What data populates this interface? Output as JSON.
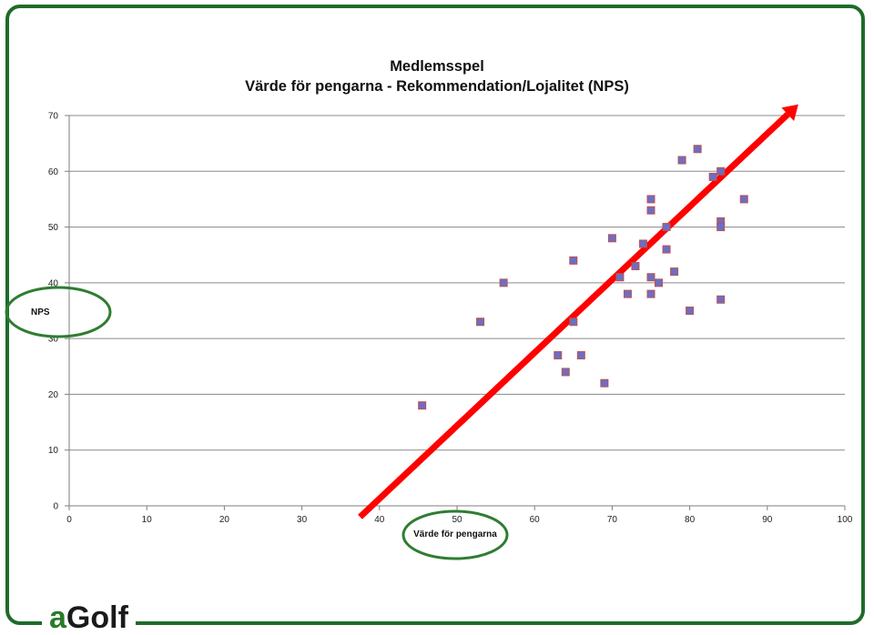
{
  "brand": {
    "logo_accent": "a",
    "logo_rest": "Golf",
    "frame_color": "#1f6b2a"
  },
  "chart_data": {
    "type": "scatter",
    "title": "Medlemsspel",
    "subtitle": "Värde för pengarna - Rekommendation/Lojalitet (NPS)",
    "xlabel": "Värde för pengarna",
    "ylabel": "NPS",
    "xlim": [
      0,
      100
    ],
    "ylim": [
      0,
      70
    ],
    "xticks": [
      0,
      10,
      20,
      30,
      40,
      50,
      60,
      70,
      80,
      90,
      100
    ],
    "yticks": [
      0,
      10,
      20,
      30,
      40,
      50,
      60,
      70
    ],
    "grid": "horizontal",
    "marker_color": "#6a6fc4",
    "marker_edge": "#c0504d",
    "arrow_color": "#ff0000",
    "highlight_color": "#2e7d32",
    "trend_arrow": {
      "from": [
        37.5,
        -2
      ],
      "to": [
        94,
        72
      ]
    },
    "points": [
      [
        45.5,
        18
      ],
      [
        53,
        33
      ],
      [
        56,
        40
      ],
      [
        63,
        27
      ],
      [
        64,
        24
      ],
      [
        65,
        44
      ],
      [
        65,
        33
      ],
      [
        66,
        27
      ],
      [
        69,
        22
      ],
      [
        70,
        48
      ],
      [
        71,
        41
      ],
      [
        72,
        38
      ],
      [
        73,
        43
      ],
      [
        74,
        47
      ],
      [
        75,
        55
      ],
      [
        75,
        53
      ],
      [
        75,
        41
      ],
      [
        75,
        38
      ],
      [
        76,
        40
      ],
      [
        77,
        46
      ],
      [
        77,
        50
      ],
      [
        78,
        42
      ],
      [
        79,
        62
      ],
      [
        80,
        35
      ],
      [
        81,
        64
      ],
      [
        83,
        59
      ],
      [
        84,
        60
      ],
      [
        84,
        51
      ],
      [
        84,
        50
      ],
      [
        84,
        37
      ],
      [
        87,
        55
      ]
    ]
  }
}
